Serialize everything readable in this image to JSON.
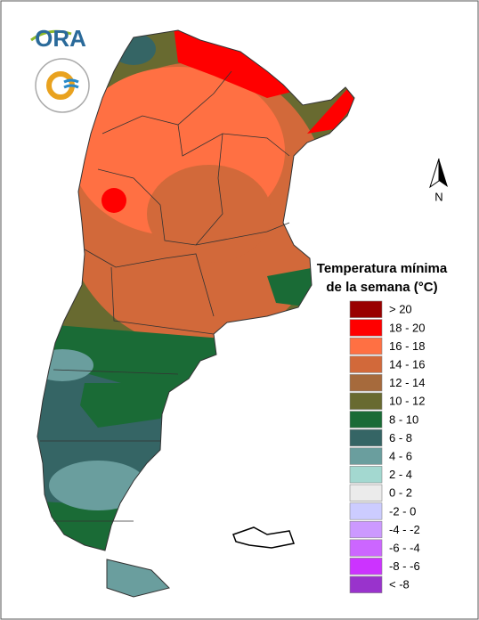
{
  "logo": {
    "text": "ORA"
  },
  "north_label": "N",
  "legend": {
    "title_line1": "Temperatura mínima",
    "title_line2": "de la semana (°C)",
    "items": [
      {
        "label": "> 20",
        "color": "#990000"
      },
      {
        "label": "18 - 20",
        "color": "#ff0000"
      },
      {
        "label": "16 - 18",
        "color": "#ff7043"
      },
      {
        "label": "14 - 16",
        "color": "#d2693a"
      },
      {
        "label": "12 - 14",
        "color": "#a66a3c"
      },
      {
        "label": "10 - 12",
        "color": "#686a30"
      },
      {
        "label": "8 - 10",
        "color": "#1a6b36"
      },
      {
        "label": "6 - 8",
        "color": "#356565"
      },
      {
        "label": "4 - 6",
        "color": "#6a9e9e"
      },
      {
        "label": "2 - 4",
        "color": "#a3d8d0"
      },
      {
        "label": "0 - 2",
        "color": "#ebebeb"
      },
      {
        "label": "-2 - 0",
        "color": "#ccccff"
      },
      {
        "label": "-4 - -2",
        "color": "#cc99ff"
      },
      {
        "label": "-6 - -4",
        "color": "#cc66ff"
      },
      {
        "label": "-8 - -6",
        "color": "#cc33ff"
      },
      {
        "label": "< -8",
        "color": "#9933cc"
      }
    ]
  }
}
